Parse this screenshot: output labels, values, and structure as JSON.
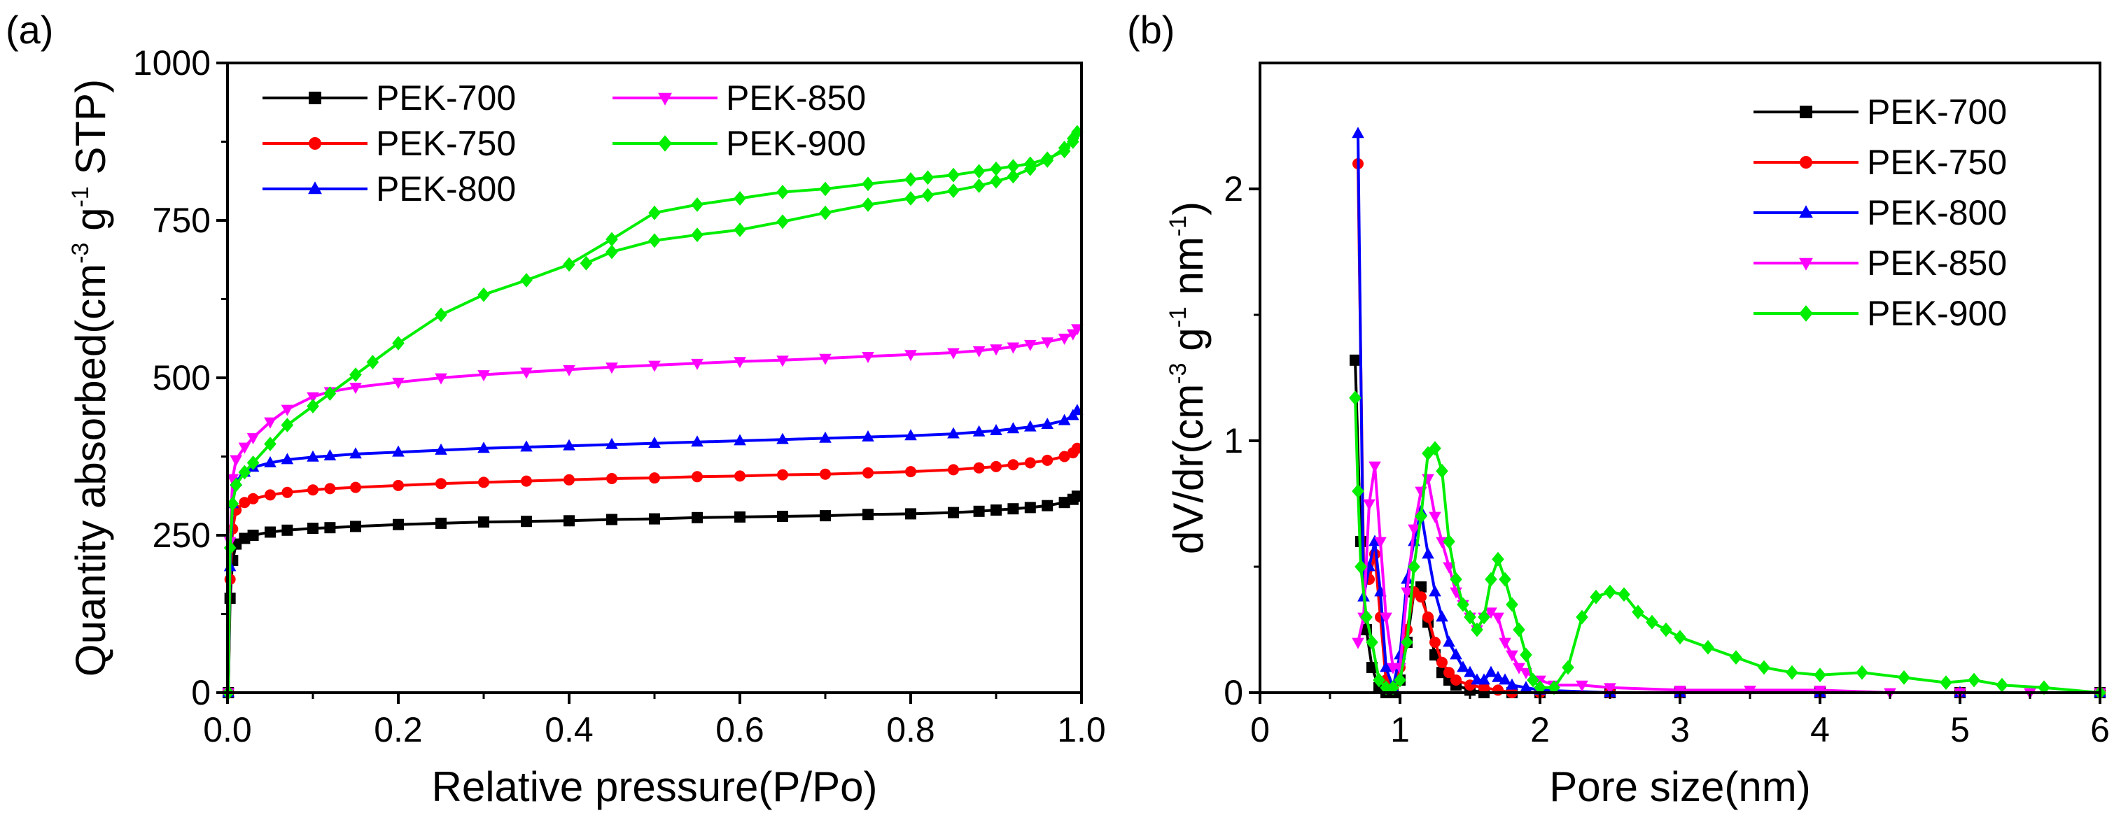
{
  "chart_data": [
    {
      "type": "line",
      "panel_label": "(a)",
      "title": "",
      "xlabel": "Relative pressure(P/Po)",
      "ylabel": {
        "main": "Quantity absorbed(cm",
        "sup1": "-3",
        "mid": " g",
        "sup2": "-1",
        "tail": " STP)"
      },
      "xlim": [
        0.0,
        1.0
      ],
      "ylim": [
        0,
        1000
      ],
      "xticks": [
        "0.0",
        "0.2",
        "0.4",
        "0.6",
        "0.8",
        "1.0"
      ],
      "yticks": [
        "0",
        "250",
        "500",
        "750",
        "1000"
      ],
      "grid": false,
      "legend_position": "top-left",
      "series": [
        {
          "name": "PEK-700",
          "color": "#000000",
          "marker": "square",
          "x": [
            0.001,
            0.003,
            0.006,
            0.01,
            0.02,
            0.03,
            0.05,
            0.07,
            0.1,
            0.12,
            0.15,
            0.2,
            0.25,
            0.3,
            0.35,
            0.4,
            0.45,
            0.5,
            0.55,
            0.6,
            0.65,
            0.7,
            0.75,
            0.8,
            0.85,
            0.88,
            0.9,
            0.92,
            0.94,
            0.96,
            0.98,
            0.99,
            0.995
          ],
          "y": [
            0,
            150,
            210,
            236,
            245,
            250,
            255,
            258,
            261,
            262,
            264,
            267,
            269,
            271,
            272,
            273,
            275,
            276,
            278,
            279,
            280,
            281,
            283,
            284,
            286,
            288,
            290,
            292,
            294,
            297,
            302,
            307,
            312
          ]
        },
        {
          "name": "PEK-750",
          "color": "#ff0000",
          "marker": "circle",
          "x": [
            0.001,
            0.003,
            0.006,
            0.01,
            0.02,
            0.03,
            0.05,
            0.07,
            0.1,
            0.12,
            0.15,
            0.2,
            0.25,
            0.3,
            0.35,
            0.4,
            0.45,
            0.5,
            0.55,
            0.6,
            0.65,
            0.7,
            0.75,
            0.8,
            0.85,
            0.88,
            0.9,
            0.92,
            0.94,
            0.96,
            0.98,
            0.99,
            0.995
          ],
          "y": [
            0,
            180,
            260,
            290,
            302,
            308,
            314,
            318,
            322,
            324,
            326,
            329,
            332,
            334,
            336,
            338,
            340,
            341,
            343,
            344,
            346,
            347,
            349,
            351,
            354,
            357,
            359,
            362,
            365,
            369,
            375,
            381,
            388
          ]
        },
        {
          "name": "PEK-800",
          "color": "#0000ff",
          "marker": "triangle-up",
          "x": [
            0.001,
            0.003,
            0.006,
            0.01,
            0.02,
            0.03,
            0.05,
            0.07,
            0.1,
            0.12,
            0.15,
            0.2,
            0.25,
            0.3,
            0.35,
            0.4,
            0.45,
            0.5,
            0.55,
            0.6,
            0.65,
            0.7,
            0.75,
            0.8,
            0.85,
            0.88,
            0.9,
            0.92,
            0.94,
            0.96,
            0.98,
            0.99,
            0.995
          ],
          "y": [
            0,
            200,
            300,
            335,
            350,
            358,
            365,
            370,
            374,
            376,
            379,
            382,
            385,
            388,
            390,
            392,
            394,
            396,
            398,
            400,
            402,
            404,
            406,
            408,
            411,
            414,
            416,
            419,
            422,
            426,
            432,
            440,
            448
          ]
        },
        {
          "name": "PEK-850",
          "color": "#ff00ff",
          "marker": "triangle-down",
          "x": [
            0.001,
            0.003,
            0.006,
            0.01,
            0.02,
            0.03,
            0.05,
            0.07,
            0.1,
            0.12,
            0.15,
            0.2,
            0.25,
            0.3,
            0.35,
            0.4,
            0.45,
            0.5,
            0.55,
            0.6,
            0.65,
            0.7,
            0.75,
            0.8,
            0.85,
            0.88,
            0.9,
            0.92,
            0.94,
            0.96,
            0.98,
            0.99,
            0.995
          ],
          "y": [
            0,
            240,
            340,
            370,
            390,
            405,
            430,
            450,
            470,
            478,
            485,
            493,
            500,
            505,
            509,
            513,
            517,
            520,
            523,
            526,
            528,
            531,
            534,
            537,
            540,
            543,
            546,
            549,
            553,
            557,
            563,
            570,
            578
          ]
        },
        {
          "name": "PEK-900",
          "color": "#00ee00",
          "marker": "diamond",
          "x": [
            0.001,
            0.003,
            0.006,
            0.01,
            0.02,
            0.03,
            0.05,
            0.07,
            0.1,
            0.12,
            0.15,
            0.17,
            0.2,
            0.25,
            0.3,
            0.35,
            0.4,
            0.45,
            0.5,
            0.55,
            0.6,
            0.65,
            0.7,
            0.75,
            0.8,
            0.82,
            0.85,
            0.88,
            0.9,
            0.92,
            0.94,
            0.96,
            0.98,
            0.99,
            0.995,
            0.99,
            0.98,
            0.96,
            0.94,
            0.92,
            0.9,
            0.88,
            0.85,
            0.82,
            0.8,
            0.75,
            0.7,
            0.65,
            0.6,
            0.55,
            0.5,
            0.45,
            0.42
          ],
          "y": [
            0,
            230,
            300,
            330,
            350,
            365,
            395,
            425,
            455,
            475,
            505,
            525,
            555,
            600,
            632,
            655,
            680,
            720,
            762,
            775,
            785,
            795,
            800,
            808,
            815,
            818,
            822,
            828,
            832,
            836,
            840,
            848,
            860,
            875,
            890,
            880,
            865,
            845,
            832,
            820,
            812,
            805,
            797,
            790,
            785,
            775,
            762,
            748,
            735,
            727,
            718,
            700,
            682
          ]
        }
      ]
    },
    {
      "type": "line",
      "panel_label": "(b)",
      "title": "",
      "xlabel": "Pore size(nm)",
      "ylabel": {
        "main": "dV/dr(cm",
        "sup1": "-3",
        "mid": " g",
        "sup2": "-1",
        "tail": " nm",
        "sup3": "-1",
        "end": ")"
      },
      "xlim": [
        0,
        6
      ],
      "ylim": [
        0,
        2.5
      ],
      "xticks": [
        "0",
        "1",
        "2",
        "3",
        "4",
        "5",
        "6"
      ],
      "yticks": [
        "0",
        "1",
        "2"
      ],
      "grid": false,
      "legend_position": "top-right",
      "series": [
        {
          "name": "PEK-700",
          "color": "#000000",
          "marker": "square",
          "x": [
            0.68,
            0.72,
            0.76,
            0.8,
            0.85,
            0.9,
            0.95,
            1.0,
            1.05,
            1.1,
            1.15,
            1.2,
            1.25,
            1.3,
            1.35,
            1.4,
            1.5,
            1.6,
            1.8,
            2.0,
            2.5,
            3.0,
            4.0,
            5.0,
            6.0
          ],
          "y": [
            1.32,
            0.6,
            0.25,
            0.1,
            0.02,
            0.0,
            0.0,
            0.05,
            0.2,
            0.4,
            0.42,
            0.28,
            0.15,
            0.08,
            0.05,
            0.03,
            0.01,
            0.0,
            0.0,
            0.0,
            0.0,
            0.0,
            0.0,
            0.0,
            0.0
          ]
        },
        {
          "name": "PEK-750",
          "color": "#ff0000",
          "marker": "circle",
          "x": [
            0.7,
            0.74,
            0.78,
            0.82,
            0.86,
            0.9,
            0.95,
            1.0,
            1.05,
            1.1,
            1.15,
            1.2,
            1.25,
            1.3,
            1.35,
            1.4,
            1.5,
            1.6,
            1.7,
            1.8,
            2.0,
            2.5,
            3.0,
            4.0,
            5.0,
            6.0
          ],
          "y": [
            2.1,
            0.5,
            0.45,
            0.55,
            0.3,
            0.05,
            0.02,
            0.1,
            0.25,
            0.4,
            0.38,
            0.3,
            0.2,
            0.12,
            0.08,
            0.05,
            0.03,
            0.02,
            0.01,
            0.0,
            0.0,
            0.0,
            0.0,
            0.0,
            0.0,
            0.0
          ]
        },
        {
          "name": "PEK-800",
          "color": "#0000ff",
          "marker": "triangle-up",
          "x": [
            0.7,
            0.74,
            0.78,
            0.82,
            0.86,
            0.9,
            0.95,
            1.0,
            1.05,
            1.1,
            1.15,
            1.2,
            1.25,
            1.3,
            1.35,
            1.4,
            1.45,
            1.5,
            1.55,
            1.6,
            1.65,
            1.7,
            1.75,
            1.8,
            1.9,
            2.0,
            2.5,
            3.0,
            4.0,
            5.0,
            6.0
          ],
          "y": [
            2.22,
            0.38,
            0.5,
            0.6,
            0.4,
            0.1,
            0.02,
            0.15,
            0.45,
            0.6,
            0.72,
            0.55,
            0.4,
            0.3,
            0.2,
            0.15,
            0.1,
            0.08,
            0.05,
            0.05,
            0.08,
            0.06,
            0.05,
            0.03,
            0.02,
            0.01,
            0.0,
            0.0,
            0.0,
            0.0,
            0.0
          ]
        },
        {
          "name": "PEK-850",
          "color": "#ff00ff",
          "marker": "triangle-down",
          "x": [
            0.7,
            0.74,
            0.78,
            0.82,
            0.86,
            0.9,
            0.95,
            1.0,
            1.05,
            1.1,
            1.15,
            1.2,
            1.25,
            1.3,
            1.35,
            1.4,
            1.45,
            1.5,
            1.55,
            1.6,
            1.65,
            1.7,
            1.75,
            1.8,
            1.85,
            1.9,
            2.0,
            2.1,
            2.3,
            2.5,
            3.0,
            3.5,
            4.0,
            4.5,
            5.0,
            5.5,
            6.0
          ],
          "y": [
            0.2,
            0.3,
            0.75,
            0.9,
            0.6,
            0.3,
            0.1,
            0.1,
            0.4,
            0.65,
            0.8,
            0.85,
            0.7,
            0.6,
            0.5,
            0.4,
            0.35,
            0.3,
            0.25,
            0.3,
            0.32,
            0.3,
            0.2,
            0.15,
            0.1,
            0.08,
            0.05,
            0.03,
            0.03,
            0.02,
            0.01,
            0.01,
            0.01,
            0.0,
            0.0,
            0.0,
            0.0
          ]
        },
        {
          "name": "PEK-900",
          "color": "#00ee00",
          "marker": "diamond",
          "x": [
            0.68,
            0.7,
            0.72,
            0.76,
            0.8,
            0.85,
            0.9,
            0.95,
            1.0,
            1.05,
            1.1,
            1.15,
            1.2,
            1.25,
            1.3,
            1.35,
            1.4,
            1.45,
            1.5,
            1.55,
            1.6,
            1.65,
            1.7,
            1.75,
            1.8,
            1.85,
            1.9,
            1.95,
            2.0,
            2.1,
            2.2,
            2.3,
            2.4,
            2.5,
            2.6,
            2.7,
            2.8,
            2.9,
            3.0,
            3.2,
            3.4,
            3.6,
            3.8,
            4.0,
            4.3,
            4.6,
            4.9,
            5.1,
            5.3,
            5.6,
            6.0
          ],
          "y": [
            1.17,
            0.8,
            0.5,
            0.3,
            0.2,
            0.05,
            0.02,
            0.02,
            0.05,
            0.2,
            0.5,
            0.7,
            0.95,
            0.97,
            0.88,
            0.6,
            0.45,
            0.35,
            0.3,
            0.25,
            0.3,
            0.45,
            0.53,
            0.45,
            0.35,
            0.25,
            0.15,
            0.05,
            0.02,
            0.02,
            0.1,
            0.3,
            0.38,
            0.4,
            0.39,
            0.32,
            0.28,
            0.25,
            0.22,
            0.18,
            0.14,
            0.1,
            0.08,
            0.07,
            0.08,
            0.06,
            0.04,
            0.05,
            0.03,
            0.02,
            0.0
          ]
        }
      ]
    }
  ]
}
